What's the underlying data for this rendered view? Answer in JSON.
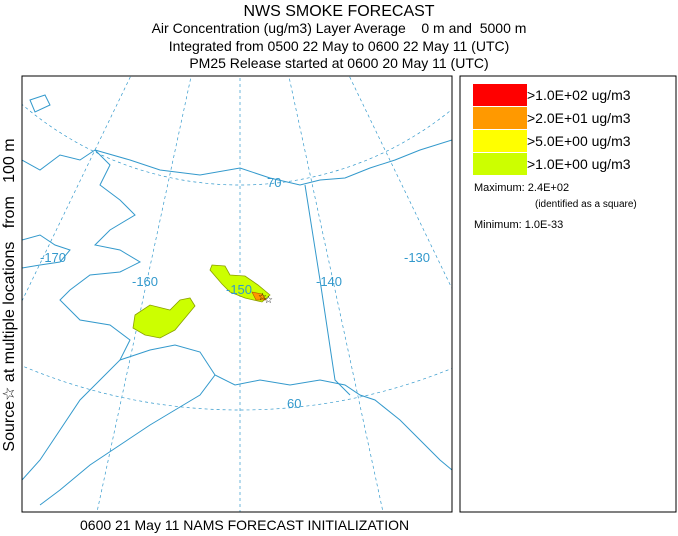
{
  "header": {
    "title": "NWS SMOKE FORECAST",
    "lines": [
      "Air Concentration (ug/m3) Layer Average    0 m and  5000 m",
      "Integrated from 0500 22 May to 0600 22 May 11 (UTC)",
      "PM25 Release started at 0600 20 May 11 (UTC)"
    ]
  },
  "side_label": "Source☆ at multiple locations   from   100 m",
  "map_labels": [
    "-170",
    "-160",
    "-150",
    "-140",
    "-130",
    "70",
    "60"
  ],
  "legend": {
    "items": [
      {
        "label": ">1.0E+02 ug/m3",
        "color": "#ff0000"
      },
      {
        "label": ">2.0E+01 ug/m3",
        "color": "#ff9900"
      },
      {
        "label": ">5.0E+00 ug/m3",
        "color": "#ffff00"
      },
      {
        "label": ">1.0E+00 ug/m3",
        "color": "#ccff00"
      }
    ],
    "maximum": "Maximum: 2.4E+02",
    "maximum_note": "(identified as a square)",
    "minimum": "Minimum: 1.0E-33"
  },
  "footer": "0600 21 May 11 NAMS FORECAST INITIALIZATION"
}
